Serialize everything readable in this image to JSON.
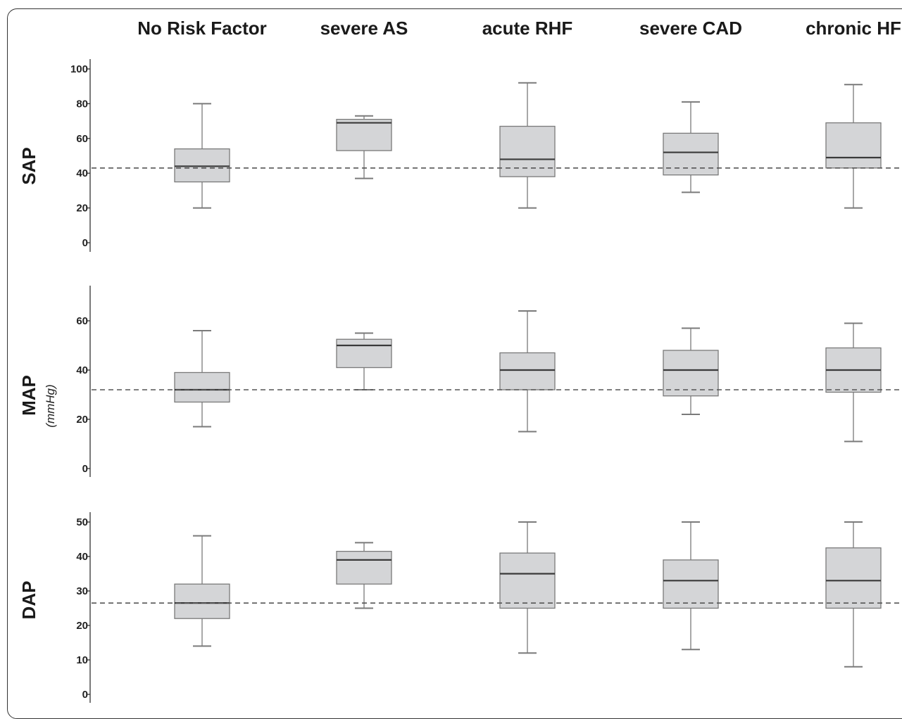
{
  "chart_data": {
    "type": "boxplot",
    "categories": [
      "No Risk Factor",
      "severe AS",
      "acute RHF",
      "severe CAD",
      "chronic HF"
    ],
    "colors": {
      "box_fill": "#d4d5d7",
      "box_stroke": "#7a7a7a",
      "median": "#3a3a3a",
      "whisker": "#7a7a7a",
      "reference_line": "#555555"
    },
    "panels": [
      {
        "label": "SAP",
        "unit": "",
        "ylim": [
          0,
          100
        ],
        "yticks": [
          "0",
          "20",
          "40",
          "60",
          "80",
          "100"
        ],
        "reference_line": 43,
        "boxes": [
          {
            "category": "No Risk Factor",
            "min": 20,
            "q1": 35,
            "median": 44,
            "q3": 54,
            "max": 80
          },
          {
            "category": "severe AS",
            "min": 37,
            "q1": 53,
            "median": 69,
            "q3": 71,
            "max": 73
          },
          {
            "category": "acute RHF",
            "min": 20,
            "q1": 38,
            "median": 48,
            "q3": 67,
            "max": 92
          },
          {
            "category": "severe CAD",
            "min": 29,
            "q1": 39,
            "median": 52,
            "q3": 63,
            "max": 81
          },
          {
            "category": "chronic HF",
            "min": 20,
            "q1": 43,
            "median": 49,
            "q3": 69,
            "max": 91
          }
        ]
      },
      {
        "label": "MAP",
        "unit": "(mmHg)",
        "ylim": [
          0,
          60
        ],
        "yticks": [
          "0",
          "20",
          "40",
          "60"
        ],
        "reference_line": 32,
        "boxes": [
          {
            "category": "No Risk Factor",
            "min": 17,
            "q1": 27,
            "median": 32,
            "q3": 39,
            "max": 56
          },
          {
            "category": "severe AS",
            "min": 32,
            "q1": 41,
            "median": 50,
            "q3": 52.5,
            "max": 55
          },
          {
            "category": "acute RHF",
            "min": 15,
            "q1": 32,
            "median": 40,
            "q3": 47,
            "max": 64
          },
          {
            "category": "severe CAD",
            "min": 22,
            "q1": 29.5,
            "median": 40,
            "q3": 48,
            "max": 57
          },
          {
            "category": "chronic HF",
            "min": 11,
            "q1": 31,
            "median": 40,
            "q3": 49,
            "max": 59
          }
        ]
      },
      {
        "label": "DAP",
        "unit": "",
        "ylim": [
          0,
          50
        ],
        "yticks": [
          "0",
          "10",
          "20",
          "30",
          "40",
          "50"
        ],
        "reference_line": 26.5,
        "boxes": [
          {
            "category": "No Risk Factor",
            "min": 14,
            "q1": 22,
            "median": 26.5,
            "q3": 32,
            "max": 46
          },
          {
            "category": "severe AS",
            "min": 25,
            "q1": 32,
            "median": 39,
            "q3": 41.5,
            "max": 44
          },
          {
            "category": "acute RHF",
            "min": 12,
            "q1": 25,
            "median": 35,
            "q3": 41,
            "max": 50
          },
          {
            "category": "severe CAD",
            "min": 13,
            "q1": 25,
            "median": 33,
            "q3": 39,
            "max": 50
          },
          {
            "category": "chronic HF",
            "min": 8,
            "q1": 25,
            "median": 33,
            "q3": 42.5,
            "max": 50
          }
        ]
      }
    ]
  }
}
